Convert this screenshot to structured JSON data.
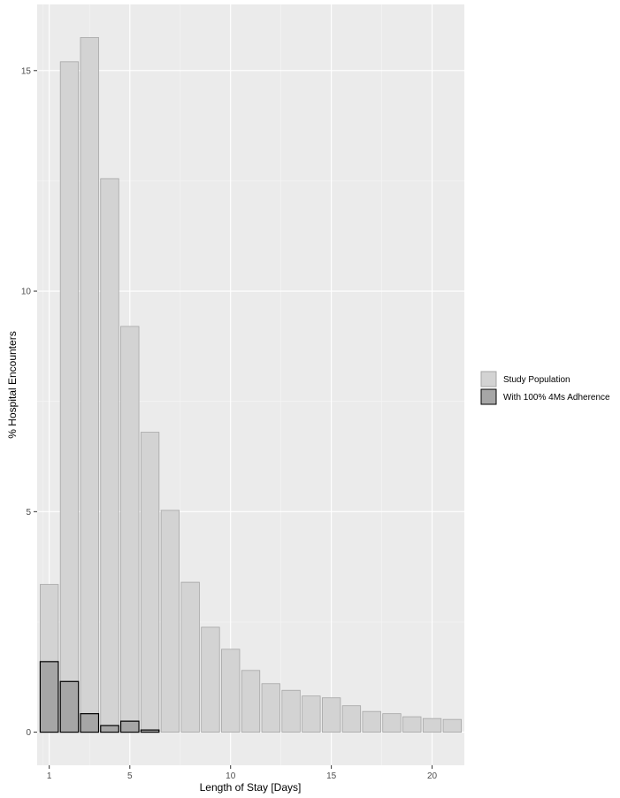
{
  "chart_data": {
    "type": "bar",
    "xlabel": "Length of Stay [Days]",
    "ylabel": "% Hospital Encounters",
    "x": [
      1,
      2,
      3,
      4,
      5,
      6,
      7,
      8,
      9,
      10,
      11,
      12,
      13,
      14,
      15,
      16,
      17,
      18,
      19,
      20,
      21
    ],
    "xticks": [
      1,
      5,
      10,
      15,
      20
    ],
    "xtick_labels": [
      "1",
      "5",
      "10",
      "15",
      "20"
    ],
    "yticks": [
      0,
      5,
      10,
      15
    ],
    "ytick_labels": [
      "0",
      "5",
      "10",
      "15"
    ],
    "xlim": [
      0.4,
      21.6
    ],
    "ylim": [
      -0.75,
      16.5
    ],
    "grid": true,
    "legend_position": "right",
    "series": [
      {
        "name": "Study Population",
        "fill": "#d3d3d3",
        "stroke": "#a6a6a6",
        "values": [
          3.35,
          15.2,
          15.75,
          12.55,
          9.2,
          6.8,
          5.03,
          3.4,
          2.38,
          1.88,
          1.4,
          1.1,
          0.95,
          0.82,
          0.78,
          0.6,
          0.47,
          0.42,
          0.35,
          0.31,
          0.29
        ]
      },
      {
        "name": "With 100% 4Ms Adherence",
        "fill": "#a6a6a6",
        "stroke": "#000000",
        "values": [
          1.6,
          1.15,
          0.42,
          0.15,
          0.25,
          0.05,
          0,
          0,
          0,
          0,
          0,
          0,
          0,
          0,
          0,
          0,
          0,
          0,
          0,
          0,
          0
        ]
      }
    ],
    "colors": {
      "panel_background": "#ebebeb",
      "grid_major": "#ffffff",
      "grid_minor": "#f5f5f5",
      "axis_text": "#4d4d4d"
    }
  }
}
